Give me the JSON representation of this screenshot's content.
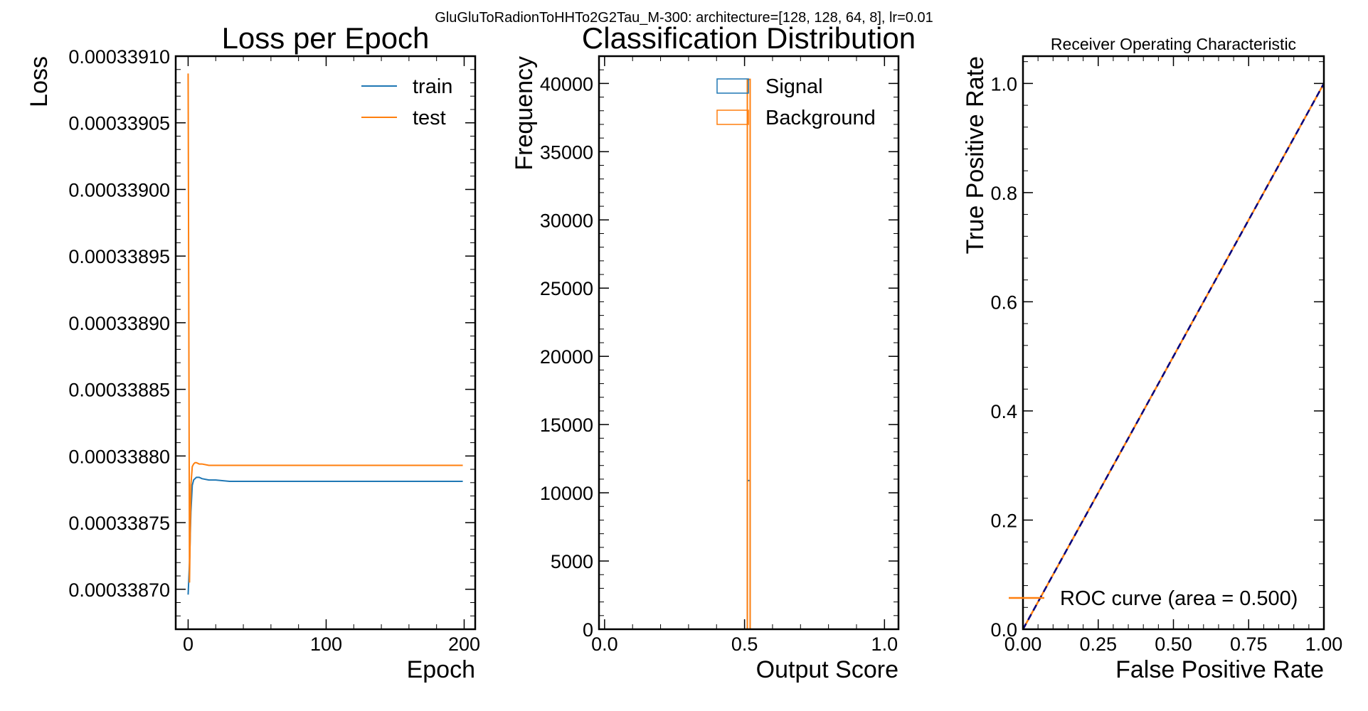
{
  "suptitle": "GluGluToRadionToHHTo2G2Tau_M-300: architecture=[128, 128, 64, 8], lr=0.01",
  "colors": {
    "train": "#1f77b4",
    "test": "#ff7f0e",
    "signal": "#1f77b4",
    "background": "#ff7f0e",
    "diagonal": "#000080"
  },
  "chart_data": [
    {
      "type": "line",
      "title": "Loss per Epoch",
      "xlabel": "Epoch",
      "ylabel": "Loss",
      "xlim": [
        -9,
        208
      ],
      "ylim": [
        0.00033867,
        0.0003391
      ],
      "xticks": [
        0,
        100,
        200
      ],
      "xtick_labels": [
        "0",
        "100",
        "200"
      ],
      "yticks": [
        0.0003387,
        0.00033875,
        0.0003388,
        0.00033885,
        0.0003389,
        0.00033895,
        0.000339,
        0.00033905,
        0.0003391
      ],
      "ytick_labels": [
        "0.00033870",
        "0.00033875",
        "0.00033880",
        "0.00033885",
        "0.00033890",
        "0.00033895",
        "0.00033900",
        "0.00033905",
        "0.00033910"
      ],
      "legend_position": "upper-right",
      "series": [
        {
          "name": "train",
          "color": "#1f77b4",
          "x": [
            0,
            1,
            2,
            3,
            4,
            5,
            6,
            8,
            10,
            15,
            20,
            30,
            40,
            60,
            100,
            150,
            199
          ],
          "y": [
            0.000338696,
            0.00033872,
            0.000338758,
            0.000338778,
            0.000338782,
            0.000338783,
            0.000338784,
            0.000338784,
            0.000338783,
            0.000338782,
            0.000338782,
            0.000338781,
            0.000338781,
            0.000338781,
            0.000338781,
            0.000338781,
            0.000338781
          ]
        },
        {
          "name": "test",
          "color": "#ff7f0e",
          "x": [
            0,
            1,
            2,
            3,
            4,
            5,
            6,
            8,
            10,
            15,
            20,
            30,
            40,
            60,
            100,
            150,
            199
          ],
          "y": [
            0.000339087,
            0.000338705,
            0.000338778,
            0.000338792,
            0.000338794,
            0.000338795,
            0.000338795,
            0.000338794,
            0.000338794,
            0.000338793,
            0.000338793,
            0.000338793,
            0.000338793,
            0.000338793,
            0.000338793,
            0.000338793,
            0.000338793
          ]
        }
      ]
    },
    {
      "type": "bar",
      "title": "Classification Distribution",
      "xlabel": "Output Score",
      "ylabel": "Frequency",
      "xlim": [
        -0.02,
        1.05
      ],
      "ylim": [
        0,
        42000
      ],
      "xticks": [
        0,
        0.5,
        1.0
      ],
      "xtick_labels": [
        "0.0",
        "0.5",
        "1.0"
      ],
      "yticks": [
        0,
        5000,
        10000,
        15000,
        20000,
        25000,
        30000,
        35000,
        40000
      ],
      "ytick_labels": [
        "0",
        "5000",
        "10000",
        "15000",
        "20000",
        "25000",
        "30000",
        "35000",
        "40000"
      ],
      "legend_position": "upper-right",
      "series": [
        {
          "name": "Signal",
          "color": "#1f77b4",
          "bins": [
            [
              0.51,
              0.52
            ]
          ],
          "values": [
            10900
          ]
        },
        {
          "name": "Background",
          "color": "#ff7f0e",
          "bins": [
            [
              0.51,
              0.52
            ]
          ],
          "values": [
            40300
          ]
        }
      ]
    },
    {
      "type": "line",
      "title": "Receiver Operating Characteristic",
      "xlabel": "False Positive Rate",
      "ylabel": "True Positive Rate",
      "xlim": [
        0.0,
        1.0
      ],
      "ylim": [
        0.0,
        1.05
      ],
      "xticks": [
        0,
        0.25,
        0.5,
        0.75,
        1.0
      ],
      "xtick_labels": [
        "0.00",
        "0.25",
        "0.50",
        "0.75",
        "1.00"
      ],
      "yticks": [
        0,
        0.2,
        0.4,
        0.6,
        0.8,
        1.0
      ],
      "ytick_labels": [
        "0.0",
        "0.2",
        "0.4",
        "0.6",
        "0.8",
        "1.0"
      ],
      "legend_position": "lower-left",
      "series": [
        {
          "name": "ROC curve (area = 0.500)",
          "color": "#ff7f0e",
          "x": [
            0,
            1
          ],
          "y": [
            0,
            1
          ]
        },
        {
          "color": "#000080",
          "style": "dashed",
          "x": [
            0,
            1
          ],
          "y": [
            0,
            1
          ]
        }
      ]
    }
  ]
}
